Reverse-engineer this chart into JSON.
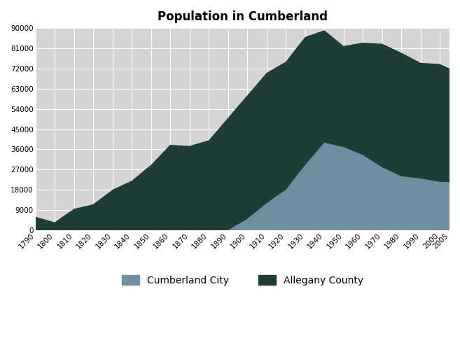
{
  "title": "Population in Cumberland",
  "title_fontsize": 12,
  "title_fontweight": "bold",
  "years": [
    1790,
    1800,
    1810,
    1820,
    1830,
    1840,
    1850,
    1860,
    1870,
    1880,
    1890,
    1900,
    1910,
    1920,
    1930,
    1940,
    1950,
    1960,
    1970,
    1980,
    1990,
    2000,
    2005
  ],
  "allegany_county": [
    6000,
    3500,
    9500,
    11500,
    18000,
    22000,
    29000,
    38000,
    37500,
    40000,
    50000,
    60000,
    70000,
    75000,
    86000,
    89000,
    82000,
    83500,
    83000,
    79000,
    74500,
    74000,
    72000
  ],
  "cumberland_city": [
    0,
    0,
    0,
    0,
    0,
    0,
    0,
    0,
    0,
    0,
    0,
    5000,
    12000,
    18000,
    29000,
    39000,
    37000,
    33500,
    28000,
    24000,
    23000,
    21500,
    21500
  ],
  "county_color": "#1f3d38",
  "city_color": "#6e8fa0",
  "background_color": "#d4d4d4",
  "grid_color": "#ffffff",
  "ylim": [
    0,
    90000
  ],
  "yticks": [
    0,
    9000,
    18000,
    27000,
    36000,
    45000,
    54000,
    63000,
    72000,
    81000,
    90000
  ],
  "legend_labels": [
    "Cumberland City",
    "Allegany County"
  ],
  "hatch_county": "////",
  "hatch_city": "////"
}
